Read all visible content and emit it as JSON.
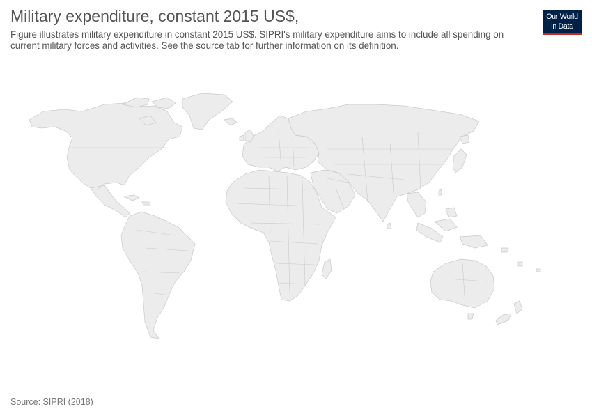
{
  "header": {
    "title": "Military expenditure, constant 2015 US$,",
    "subtitle": "Figure illustrates military expenditure in constant 2015 US$. SIPRI's military expenditure aims to include all spending on current military forces and activities. See the source tab for further information on its definition."
  },
  "logo": {
    "line1": "Our World",
    "line2": "in Data",
    "bg_color": "#002147",
    "accent_color": "#ce261e"
  },
  "map": {
    "land_color": "#ececec",
    "border_color": "#c9c9c9",
    "regions": [
      "north-america",
      "greenland",
      "central-america",
      "caribbean",
      "south-america",
      "europe",
      "africa",
      "middle-east",
      "asia",
      "southeast-asia",
      "japan",
      "australia",
      "new-zealand"
    ]
  },
  "footer": {
    "source": "Source: SIPRI (2018)"
  }
}
